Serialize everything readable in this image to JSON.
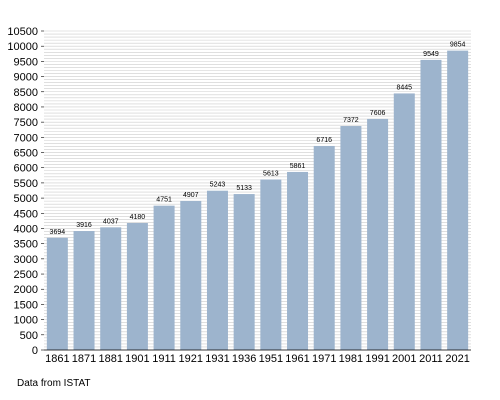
{
  "chart_data": {
    "type": "bar",
    "categories": [
      "1861",
      "1871",
      "1881",
      "1901",
      "1911",
      "1921",
      "1931",
      "1936",
      "1951",
      "1961",
      "1971",
      "1981",
      "1991",
      "2001",
      "2011",
      "2021"
    ],
    "values": [
      3694,
      3916,
      4037,
      4180,
      4751,
      4907,
      5243,
      5133,
      5613,
      5861,
      6716,
      7372,
      7606,
      8445,
      9549,
      9854
    ],
    "data_labels": [
      "3694",
      "3916",
      "4037",
      "4180",
      "4751",
      "4907",
      "5243",
      "5133",
      "5613",
      "5861",
      "6716",
      "7372",
      "7606",
      "8445",
      "9549",
      "9854"
    ],
    "y_ticks": [
      "0",
      "500",
      "1000",
      "1500",
      "2000",
      "2500",
      "3000",
      "3500",
      "4000",
      "4500",
      "5000",
      "5500",
      "6000",
      "6500",
      "7000",
      "7500",
      "8000",
      "8500",
      "9000",
      "9500",
      "10000",
      "10500"
    ],
    "ylim": [
      0,
      10500
    ],
    "grid": true,
    "bar_color": "#9db4cd",
    "grid_color": "#cccccc",
    "title": "",
    "xlabel": "",
    "ylabel": ""
  },
  "source_note": "Data from ISTAT"
}
